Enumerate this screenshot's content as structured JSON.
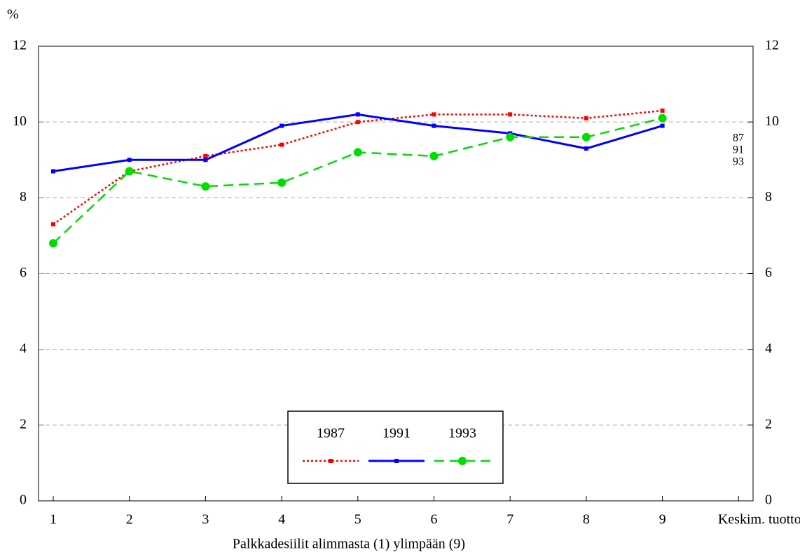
{
  "chart_data": {
    "type": "line",
    "ylabel": "%",
    "xlabel": "Palkkadesiilit alimmasta (1) ylimpään (9)",
    "categories": [
      "1",
      "2",
      "3",
      "4",
      "5",
      "6",
      "7",
      "8",
      "9",
      "Keskim. tuotto"
    ],
    "series": [
      {
        "name": "1987",
        "color": "#ff0000",
        "values": [
          7.3,
          8.7,
          9.1,
          9.4,
          10.0,
          10.2,
          10.2,
          10.1,
          10.3,
          null
        ]
      },
      {
        "name": "1991",
        "color": "#0000ff",
        "values": [
          8.7,
          9.0,
          9.0,
          9.9,
          10.2,
          9.9,
          9.7,
          9.3,
          9.9,
          null
        ]
      },
      {
        "name": "1993",
        "color": "#00dd00",
        "values": [
          6.8,
          8.7,
          8.3,
          8.4,
          9.2,
          9.1,
          9.6,
          9.6,
          10.1,
          null
        ]
      }
    ],
    "annotations": [
      "87",
      "91",
      "93"
    ],
    "ylim": [
      0,
      12
    ],
    "yticks": [
      0,
      2,
      4,
      6,
      8,
      10,
      12
    ],
    "y2lim": [
      0,
      12
    ],
    "y2ticks": [
      0,
      2,
      4,
      6,
      8,
      10,
      12
    ],
    "grid": true,
    "legend": "bottom"
  }
}
